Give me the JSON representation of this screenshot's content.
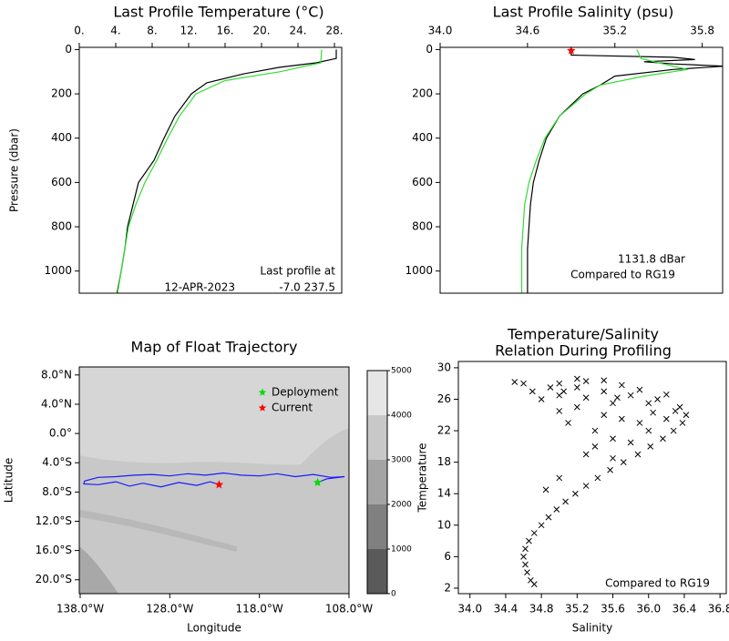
{
  "chart_data": [
    {
      "type": "line",
      "title": "Last Profile Temperature (°C)",
      "ylabel": "Pressure (dbar)",
      "x_axis_side": "top",
      "xlim": [
        0,
        28.8
      ],
      "xticks": [
        {
          "value": 0,
          "label": "0."
        },
        {
          "value": 4,
          "label": "4."
        },
        {
          "value": 8,
          "label": "8."
        },
        {
          "value": 12,
          "label": "12."
        },
        {
          "value": 16,
          "label": "16."
        },
        {
          "value": 20,
          "label": "20."
        },
        {
          "value": 24,
          "label": "24."
        },
        {
          "value": 28,
          "label": "28."
        }
      ],
      "ylim": [
        1100,
        -10
      ],
      "yticks": [
        0,
        200,
        400,
        600,
        800,
        1000
      ],
      "series": [
        {
          "color": "#000000",
          "x": [
            28.2,
            28.2,
            26,
            22,
            18,
            14,
            12.3,
            10.5,
            9.3,
            8.2,
            6.5,
            5.9,
            5.3,
            5,
            4.6,
            4.0
          ],
          "y": [
            0,
            40,
            60,
            80,
            110,
            150,
            200,
            300,
            400,
            500,
            600,
            700,
            800,
            900,
            1000,
            1131
          ]
        },
        {
          "color": "#33dd33",
          "x": [
            26.6,
            26.5,
            22,
            16,
            12.8,
            11,
            9.7,
            8.5,
            7.2,
            6.2,
            5.4,
            5.0,
            4.6,
            4.2
          ],
          "y": [
            0,
            60,
            100,
            140,
            200,
            300,
            400,
            500,
            600,
            700,
            800,
            900,
            1000,
            1100
          ]
        }
      ],
      "annotations": [
        "Last profile at",
        "12-APR-2023",
        "-7.0 237.5"
      ]
    },
    {
      "type": "line",
      "title": "Last Profile Salinity (psu)",
      "x_axis_side": "top",
      "xlim": [
        34.0,
        35.94
      ],
      "xticks": [
        {
          "value": 34.0,
          "label": "34.0"
        },
        34.6,
        35.2,
        35.8
      ],
      "ylim": [
        1100,
        -10
      ],
      "yticks": [
        0,
        200,
        400,
        600,
        800,
        1000
      ],
      "series": [
        {
          "color": "#000000",
          "x": [
            34.9,
            34.9,
            35.6,
            35.75,
            35.4,
            35.6,
            35.95,
            35.6,
            35.2,
            35.1,
            34.98,
            34.82,
            34.73,
            34.68,
            34.64,
            34.62,
            34.61,
            34.6,
            34.6,
            34.6
          ],
          "y": [
            0,
            25,
            35,
            45,
            55,
            65,
            75,
            90,
            120,
            160,
            200,
            300,
            400,
            500,
            600,
            700,
            800,
            900,
            1000,
            1131
          ]
        },
        {
          "color": "#33dd33",
          "x": [
            35.35,
            35.38,
            35.5,
            35.7,
            35.4,
            35.1,
            35.0,
            34.82,
            34.72,
            34.66,
            34.61,
            34.58,
            34.57,
            34.56,
            34.56,
            34.56
          ],
          "y": [
            0,
            40,
            60,
            90,
            120,
            160,
            200,
            300,
            400,
            500,
            600,
            700,
            800,
            900,
            1000,
            1100
          ]
        }
      ],
      "points": [
        {
          "color": "#ff0000",
          "x": 34.9,
          "y": 5
        }
      ],
      "annotations": [
        "1131.8 dBar",
        "Compared to"
      ],
      "reference": {
        "name": "RG19",
        "color": "#33dd33"
      }
    },
    {
      "type": "map",
      "title": "Map of Float Trajectory",
      "xlabel": "Longitude",
      "ylabel": "Latitude",
      "x_axis_side": "bottom",
      "xlim": [
        -138.1,
        -108
      ],
      "xticks": [
        {
          "value": -138,
          "label": "138.0°W"
        },
        {
          "value": -128,
          "label": "128.0°W"
        },
        {
          "value": -118,
          "label": "118.0°W"
        },
        {
          "value": -108,
          "label": "108.0°W"
        }
      ],
      "ylim": [
        -21.9,
        9.1
      ],
      "yticks": [
        {
          "value": 8,
          "label": "8.0°N"
        },
        {
          "value": 4,
          "label": "4.0°N"
        },
        {
          "value": 0,
          "label": "0.0°"
        },
        {
          "value": -4,
          "label": "4.0°S"
        },
        {
          "value": -8,
          "label": "8.0°S"
        },
        {
          "value": -12,
          "label": "12.0°S"
        },
        {
          "value": -16,
          "label": "16.0°S"
        },
        {
          "value": -20,
          "label": "20.0°S"
        }
      ],
      "series": [
        {
          "color": "#1a1aff",
          "x": [
            -111.5,
            -110.5,
            -108.5,
            -110,
            -112,
            -114,
            -116,
            -118,
            -120,
            -122,
            -124,
            -126,
            -128,
            -130,
            -132,
            -134,
            -136,
            -137.5,
            -137.6,
            -136,
            -134,
            -132.5,
            -131,
            -129,
            -127,
            -125,
            -123.5,
            -122.5
          ],
          "y": [
            -6.7,
            -6.2,
            -5.9,
            -6.0,
            -5.6,
            -5.9,
            -5.5,
            -5.8,
            -5.7,
            -5.4,
            -5.7,
            -5.5,
            -5.8,
            -5.6,
            -5.7,
            -5.9,
            -6.0,
            -6.5,
            -6.9,
            -7.0,
            -6.6,
            -7.2,
            -6.8,
            -7.3,
            -6.7,
            -7.1,
            -6.6,
            -7.0
          ]
        }
      ],
      "points": [
        {
          "name": "Deployment",
          "color": "#00dd00",
          "x": -111.5,
          "y": -6.7
        },
        {
          "name": "Current",
          "color": "#ff0000",
          "x": -122.5,
          "y": -7.0
        }
      ],
      "colorbar": {
        "lim": [
          0,
          5000
        ],
        "ticks": [
          0,
          1000,
          2000,
          3000,
          4000,
          5000
        ],
        "colors": [
          "#5a5a5a",
          "#808080",
          "#a4a4a4",
          "#c8c8c8",
          "#e6e6e6"
        ]
      }
    },
    {
      "type": "scatter",
      "title": "Temperature/Salinity",
      "subtitle": "Relation During Profiling",
      "xlabel": "Salinity",
      "ylabel": "Temperature",
      "x_axis_side": "bottom",
      "xlim": [
        33.87,
        36.87
      ],
      "xticks": [
        {
          "value": 34.0,
          "label": "34.0"
        },
        34.4,
        34.8,
        35.2,
        35.6,
        {
          "value": 36.0,
          "label": "36.0"
        },
        36.4,
        36.8
      ],
      "ylim": [
        1.3,
        30.8
      ],
      "yticks": [
        2,
        6,
        10,
        14,
        18,
        22,
        26,
        30
      ],
      "series": [
        {
          "color": "#000000",
          "x": [
            34.72,
            34.68,
            34.64,
            34.62,
            34.6,
            34.62,
            34.66,
            34.72,
            34.8,
            34.88,
            34.97,
            35.07,
            35.18,
            35.3,
            35.43,
            35.57,
            35.72,
            35.88,
            36.02,
            36.16,
            36.28,
            36.38,
            36.42,
            36.35,
            36.1,
            35.8,
            35.5,
            35.2,
            35.0,
            35.3,
            35.7,
            36.0,
            35.9,
            35.6,
            35.5,
            35.2,
            35.0,
            34.9,
            34.6,
            34.8,
            35.1,
            35.4,
            35.8,
            36.2,
            36.3,
            35.6,
            35.3,
            34.7,
            35.2,
            35.5,
            35.9,
            36.2,
            35.0,
            35.7,
            35.3,
            35.6,
            35.0,
            34.85,
            35.4,
            36.0,
            34.5,
            35.05,
            35.65,
            36.05
          ],
          "y": [
            2.5,
            3,
            4,
            5,
            6,
            7,
            8,
            9,
            10,
            11,
            12,
            13,
            14,
            15,
            16,
            17,
            18,
            19,
            20,
            21,
            22,
            23,
            24,
            25,
            26,
            26.5,
            27,
            27.5,
            28,
            28.3,
            27.8,
            25.5,
            23,
            21,
            24,
            25,
            26.5,
            27.5,
            28,
            26,
            23,
            22,
            20.5,
            23.5,
            24.5,
            25.5,
            26.2,
            27,
            28.6,
            28.4,
            27.2,
            26.6,
            24.5,
            23.5,
            19,
            18.5,
            16,
            14.5,
            20,
            22,
            28.2,
            27.0,
            26.2,
            24.3
          ]
        }
      ],
      "annotations": [
        "Compared to"
      ],
      "reference": {
        "name": "RG19",
        "color": "#33dd33"
      }
    }
  ]
}
